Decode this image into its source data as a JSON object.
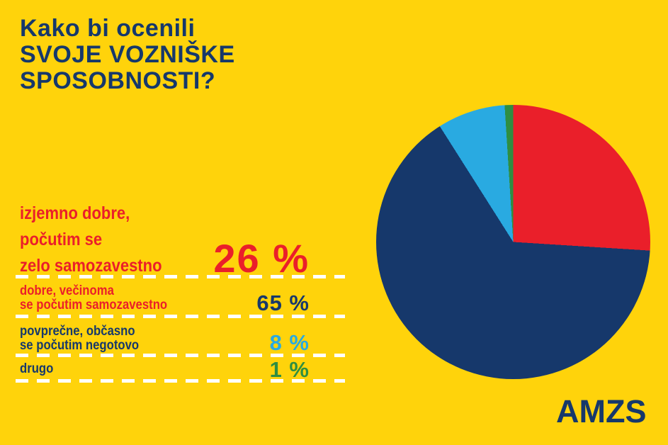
{
  "colors": {
    "background": "#FFD30B",
    "navy": "#16386B",
    "red": "#EA1F2A",
    "light_blue": "#29AAE1",
    "green": "#2F8E41",
    "dash_white": "#FFFFFF"
  },
  "title": {
    "lines": [
      "Kako bi ocenili",
      "SVOJE VOZNIŠKE",
      "SPOSOBNOSTI?"
    ]
  },
  "legend_rows": [
    {
      "label_lines": [
        "izjemno dobre,",
        "počutim se",
        "zelo samozavestno"
      ],
      "value": "26 %",
      "label_color": "#EA1F2A",
      "value_color": "#EA1F2A"
    },
    {
      "label_lines": [
        "dobre, večinoma",
        "se počutim samozavestno"
      ],
      "value": "65 %",
      "label_color": "#EA1F2A",
      "value_color": "#16386B"
    },
    {
      "label_lines": [
        "povprečne, občasno",
        "se počutim negotovo"
      ],
      "value": "8 %",
      "label_color": "#16386B",
      "value_color": "#29AAE1"
    },
    {
      "label_lines": [
        "drugo"
      ],
      "value": "1 %",
      "label_color": "#16386B",
      "value_color": "#2F8E41"
    }
  ],
  "chart_data": {
    "type": "pie",
    "title": "Kako bi ocenili SVOJE VOZNIŠKE SPOSOBNOSTI?",
    "categories": [
      "izjemno dobre, počutim se zelo samozavestno",
      "dobre, večinoma se počutim samozavestno",
      "povprečne, občasno se počutim negotovo",
      "drugo"
    ],
    "values": [
      26,
      65,
      8,
      1
    ],
    "unit": "%",
    "slice_colors": [
      "#EA1F2A",
      "#16386B",
      "#29AAE1",
      "#2F8E41"
    ],
    "start_angle_deg": 0,
    "direction": "clockwise",
    "legend_position": "left"
  },
  "logo": {
    "text": "AMZS"
  }
}
